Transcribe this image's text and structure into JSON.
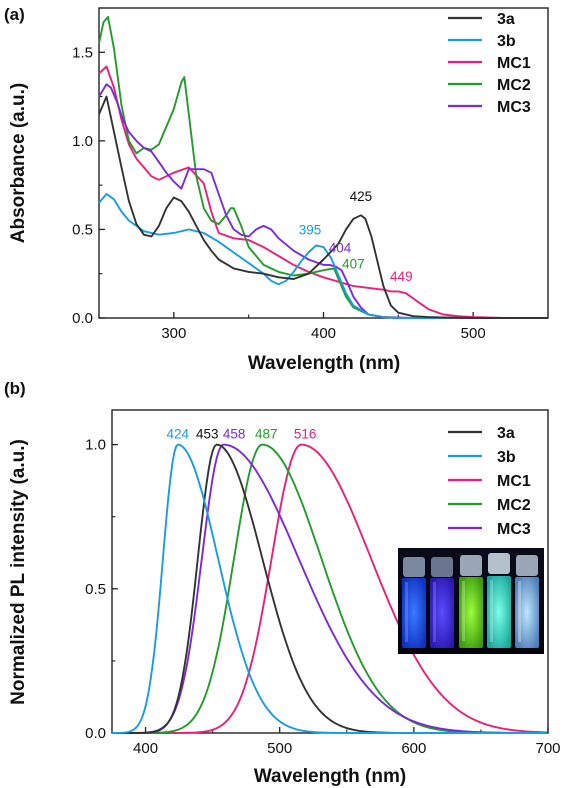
{
  "chart_data": [
    {
      "type": "line",
      "panel_label": "(a)",
      "xlabel": "Wavelength (nm)",
      "ylabel": "Absorbance (a.u.)",
      "xlim": [
        250,
        550
      ],
      "ylim": [
        0,
        1.75
      ],
      "xticks": [
        300,
        400,
        500
      ],
      "yticks": [
        0.0,
        0.5,
        1.0,
        1.5
      ],
      "tick_labels_y": [
        "0.0",
        "0.5",
        "1.0",
        "1.5"
      ],
      "tick_labels_x": [
        "300",
        "400",
        "500"
      ],
      "legend_position": "top-right",
      "series": [
        {
          "name": "3a",
          "color": "#333333",
          "x": [
            250,
            255,
            260,
            265,
            270,
            275,
            280,
            285,
            290,
            295,
            300,
            305,
            310,
            315,
            320,
            325,
            330,
            340,
            350,
            360,
            370,
            380,
            390,
            400,
            410,
            415,
            420,
            425,
            428,
            432,
            436,
            440,
            445,
            450,
            460,
            470,
            480,
            500,
            550
          ],
          "y": [
            1.15,
            1.25,
            1.05,
            0.85,
            0.66,
            0.53,
            0.47,
            0.46,
            0.52,
            0.62,
            0.68,
            0.66,
            0.6,
            0.52,
            0.44,
            0.38,
            0.33,
            0.28,
            0.26,
            0.25,
            0.23,
            0.22,
            0.25,
            0.33,
            0.42,
            0.5,
            0.56,
            0.58,
            0.56,
            0.46,
            0.32,
            0.18,
            0.07,
            0.03,
            0.01,
            0.005,
            0.003,
            0,
            0
          ]
        },
        {
          "name": "3b",
          "color": "#1b9be0",
          "x": [
            250,
            255,
            260,
            265,
            270,
            275,
            280,
            290,
            300,
            310,
            320,
            330,
            340,
            350,
            360,
            365,
            370,
            375,
            380,
            385,
            390,
            395,
            400,
            405,
            410,
            415,
            420,
            430,
            440,
            450,
            480,
            550
          ],
          "y": [
            0.65,
            0.7,
            0.67,
            0.6,
            0.55,
            0.52,
            0.49,
            0.47,
            0.48,
            0.5,
            0.48,
            0.43,
            0.37,
            0.31,
            0.25,
            0.21,
            0.19,
            0.21,
            0.26,
            0.32,
            0.37,
            0.41,
            0.4,
            0.34,
            0.24,
            0.14,
            0.07,
            0.02,
            0.005,
            0,
            0,
            0
          ]
        },
        {
          "name": "MC1",
          "color": "#e8207a",
          "x": [
            250,
            255,
            260,
            265,
            270,
            275,
            280,
            285,
            290,
            300,
            310,
            320,
            325,
            330,
            340,
            350,
            360,
            370,
            380,
            390,
            400,
            420,
            440,
            445,
            450,
            455,
            460,
            465,
            470,
            480,
            490,
            500,
            520,
            550
          ],
          "y": [
            1.38,
            1.42,
            1.3,
            1.12,
            0.98,
            0.9,
            0.85,
            0.8,
            0.78,
            0.82,
            0.85,
            0.76,
            0.6,
            0.48,
            0.45,
            0.44,
            0.4,
            0.35,
            0.3,
            0.26,
            0.23,
            0.18,
            0.16,
            0.15,
            0.15,
            0.14,
            0.11,
            0.08,
            0.05,
            0.02,
            0.01,
            0.005,
            0,
            0
          ]
        },
        {
          "name": "MC2",
          "color": "#239b2a",
          "x": [
            250,
            253,
            256,
            260,
            265,
            270,
            275,
            280,
            285,
            290,
            295,
            300,
            305,
            307,
            310,
            315,
            320,
            325,
            330,
            335,
            338,
            340,
            345,
            350,
            360,
            370,
            380,
            390,
            400,
            407,
            410,
            415,
            420,
            430,
            440,
            450,
            550
          ],
          "y": [
            1.55,
            1.67,
            1.7,
            1.52,
            1.2,
            1.0,
            0.93,
            0.96,
            0.95,
            0.98,
            1.08,
            1.18,
            1.33,
            1.36,
            1.15,
            0.8,
            0.62,
            0.55,
            0.53,
            0.58,
            0.62,
            0.62,
            0.52,
            0.4,
            0.3,
            0.26,
            0.24,
            0.25,
            0.27,
            0.28,
            0.22,
            0.12,
            0.06,
            0.02,
            0.005,
            0,
            0
          ]
        },
        {
          "name": "MC3",
          "color": "#7a2ad8",
          "x": [
            250,
            255,
            258,
            262,
            266,
            270,
            275,
            280,
            285,
            290,
            295,
            300,
            305,
            310,
            315,
            320,
            325,
            330,
            335,
            340,
            345,
            350,
            355,
            360,
            365,
            370,
            380,
            390,
            400,
            404,
            408,
            412,
            416,
            420,
            425,
            430,
            440,
            460,
            550
          ],
          "y": [
            1.25,
            1.32,
            1.3,
            1.22,
            1.12,
            1.05,
            1.0,
            0.96,
            0.94,
            0.88,
            0.82,
            0.77,
            0.73,
            0.84,
            0.84,
            0.84,
            0.82,
            0.7,
            0.58,
            0.5,
            0.47,
            0.46,
            0.5,
            0.52,
            0.5,
            0.45,
            0.38,
            0.33,
            0.3,
            0.3,
            0.29,
            0.27,
            0.2,
            0.12,
            0.06,
            0.02,
            0.005,
            0,
            0
          ]
        }
      ],
      "annotations": [
        {
          "text": "425",
          "x": 425,
          "y": 0.66,
          "color": "#111111"
        },
        {
          "text": "395",
          "x": 391,
          "y": 0.47,
          "color": "#1b9be0"
        },
        {
          "text": "404",
          "x": 411,
          "y": 0.37,
          "color": "#7a2ad8"
        },
        {
          "text": "407",
          "x": 420,
          "y": 0.28,
          "color": "#239b2a"
        },
        {
          "text": "449",
          "x": 452,
          "y": 0.21,
          "color": "#e8207a"
        }
      ]
    },
    {
      "type": "line",
      "panel_label": "(b)",
      "xlabel": "Wavelength (nm)",
      "ylabel": "Normalized PL intensity (a.u.)",
      "xlim": [
        375,
        700
      ],
      "ylim": [
        0,
        1.12
      ],
      "xticks": [
        400,
        500,
        600,
        700
      ],
      "yticks": [
        0.0,
        0.5,
        1.0
      ],
      "tick_labels_y": [
        "0.0",
        "0.5",
        "1.0"
      ],
      "tick_labels_x": [
        "400",
        "500",
        "600",
        "700"
      ],
      "legend_position": "top-right",
      "inset_photo": true,
      "series": [
        {
          "name": "3a",
          "color": "#333333",
          "peak": 453,
          "sigma_left": 14,
          "sigma_right": 34
        },
        {
          "name": "3b",
          "color": "#1b9be0",
          "peak": 424,
          "sigma_left": 11,
          "sigma_right": 30
        },
        {
          "name": "MC1",
          "color": "#e8207a",
          "peak": 516,
          "sigma_left": 22,
          "sigma_right": 52
        },
        {
          "name": "MC2",
          "color": "#239b2a",
          "peak": 487,
          "sigma_left": 21,
          "sigma_right": 44
        },
        {
          "name": "MC3",
          "color": "#7a2ad8",
          "peak": 458,
          "sigma_left": 16,
          "sigma_right": 56
        }
      ],
      "annotations": [
        {
          "text": "424",
          "x": 424,
          "color": "#1b9be0"
        },
        {
          "text": "453",
          "x": 446,
          "color": "#111111"
        },
        {
          "text": "458",
          "x": 466,
          "color": "#7a2ad8"
        },
        {
          "text": "487",
          "x": 490,
          "color": "#239b2a"
        },
        {
          "text": "516",
          "x": 519,
          "color": "#e8207a"
        }
      ]
    }
  ]
}
